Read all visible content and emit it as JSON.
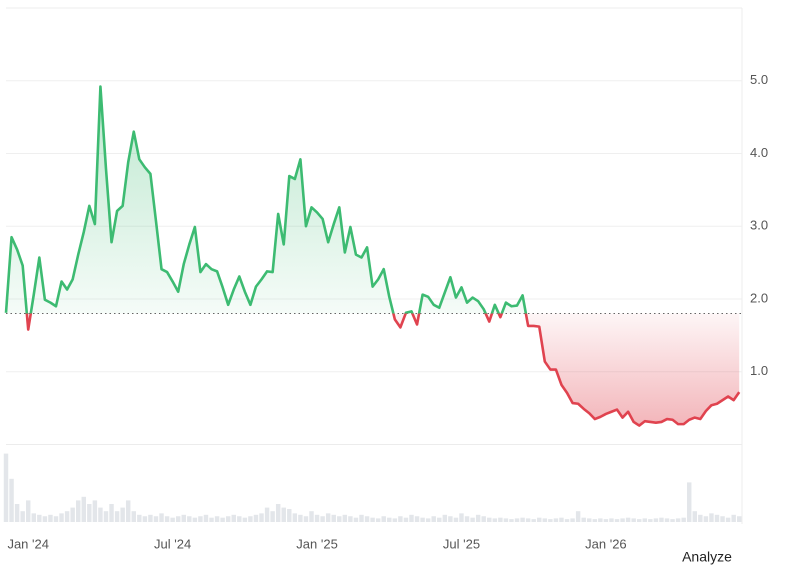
{
  "chart_data": {
    "type": "baseline-line",
    "button": "Analyze",
    "baseline": 1.8,
    "up_color": "#3dbb72",
    "down_color": "#e0434f",
    "volume_color": "#e3e6ea",
    "grid": true,
    "xlim": [
      -4,
      128.5
    ],
    "ylim": [
      0,
      6
    ],
    "volume_lim": [
      0,
      100
    ],
    "xticks": [
      {
        "value": 0,
        "label": "Jan '24"
      },
      {
        "value": 26,
        "label": "Jul '24"
      },
      {
        "value": 52,
        "label": "Jan '25"
      },
      {
        "value": 78,
        "label": "Jul '25"
      },
      {
        "value": 104,
        "label": "Jan '26"
      }
    ],
    "yticks": [
      {
        "value": 1,
        "label": "1.0"
      },
      {
        "value": 2,
        "label": "2.0"
      },
      {
        "value": 3,
        "label": "3.0"
      },
      {
        "value": 4,
        "label": "4.0"
      },
      {
        "value": 5,
        "label": "5.0"
      }
    ],
    "x": [
      -4,
      -3,
      -2,
      -1,
      0,
      1,
      2,
      3,
      4,
      5,
      6,
      7,
      8,
      9,
      10,
      11,
      12,
      13,
      14,
      15,
      16,
      17,
      18,
      19,
      20,
      21,
      22,
      23,
      24,
      25,
      26,
      27,
      28,
      29,
      30,
      31,
      32,
      33,
      34,
      35,
      36,
      37,
      38,
      39,
      40,
      41,
      42,
      43,
      44,
      45,
      46,
      47,
      48,
      49,
      50,
      51,
      52,
      53,
      54,
      55,
      56,
      57,
      58,
      59,
      60,
      61,
      62,
      63,
      64,
      65,
      66,
      67,
      68,
      69,
      70,
      71,
      72,
      73,
      74,
      75,
      76,
      77,
      78,
      79,
      80,
      81,
      82,
      83,
      84,
      85,
      86,
      87,
      88,
      89,
      90,
      91,
      92,
      93,
      94,
      95,
      96,
      97,
      98,
      99,
      100,
      101,
      102,
      103,
      104,
      105,
      106,
      107,
      108,
      109,
      110,
      111,
      112,
      113,
      114,
      115,
      116,
      117,
      118,
      119,
      120,
      121,
      122,
      123,
      124,
      125,
      126,
      127,
      128
    ],
    "values": [
      1.81,
      2.85,
      2.68,
      2.46,
      1.58,
      2.06,
      2.57,
      1.99,
      1.95,
      1.9,
      2.24,
      2.13,
      2.27,
      2.61,
      2.92,
      3.28,
      3.03,
      4.92,
      3.79,
      2.78,
      3.21,
      3.28,
      3.88,
      4.3,
      3.92,
      3.81,
      3.72,
      3.07,
      2.41,
      2.37,
      2.24,
      2.1,
      2.48,
      2.75,
      2.99,
      2.37,
      2.48,
      2.41,
      2.38,
      2.16,
      1.92,
      2.13,
      2.31,
      2.1,
      1.92,
      2.17,
      2.27,
      2.38,
      2.37,
      3.17,
      2.75,
      3.69,
      3.65,
      3.92,
      3.0,
      3.26,
      3.19,
      3.1,
      2.78,
      3.03,
      3.26,
      2.64,
      2.99,
      2.61,
      2.57,
      2.71,
      2.17,
      2.27,
      2.41,
      2.03,
      1.72,
      1.61,
      1.81,
      1.83,
      1.65,
      2.06,
      2.03,
      1.92,
      1.88,
      2.09,
      2.3,
      2.02,
      2.16,
      1.95,
      2.02,
      1.97,
      1.86,
      1.69,
      1.92,
      1.75,
      1.95,
      1.9,
      1.91,
      2.05,
      1.63,
      1.63,
      1.62,
      1.14,
      1.03,
      1.03,
      0.82,
      0.71,
      0.57,
      0.56,
      0.49,
      0.43,
      0.35,
      0.38,
      0.42,
      0.45,
      0.48,
      0.37,
      0.45,
      0.31,
      0.26,
      0.32,
      0.31,
      0.3,
      0.31,
      0.35,
      0.34,
      0.28,
      0.28,
      0.34,
      0.37,
      0.35,
      0.46,
      0.54,
      0.56,
      0.61,
      0.66,
      0.61,
      0.72
    ],
    "volume": [
      95,
      60,
      25,
      15,
      30,
      12,
      10,
      8,
      10,
      8,
      12,
      15,
      20,
      30,
      35,
      25,
      30,
      20,
      15,
      25,
      15,
      20,
      30,
      15,
      10,
      8,
      10,
      8,
      12,
      8,
      6,
      8,
      10,
      8,
      6,
      8,
      10,
      6,
      8,
      6,
      8,
      10,
      8,
      6,
      8,
      10,
      12,
      20,
      15,
      25,
      20,
      18,
      12,
      10,
      8,
      15,
      10,
      8,
      12,
      10,
      8,
      10,
      8,
      6,
      10,
      8,
      6,
      5,
      8,
      6,
      5,
      8,
      6,
      10,
      8,
      6,
      5,
      8,
      6,
      10,
      8,
      6,
      12,
      8,
      6,
      10,
      8,
      6,
      5,
      6,
      5,
      4,
      5,
      6,
      5,
      4,
      6,
      5,
      4,
      5,
      6,
      4,
      5,
      15,
      6,
      5,
      4,
      5,
      4,
      5,
      4,
      5,
      6,
      5,
      4,
      5,
      4,
      5,
      6,
      5,
      4,
      5,
      6,
      55,
      15,
      10,
      8,
      12,
      10,
      8,
      6,
      10,
      8
    ]
  }
}
